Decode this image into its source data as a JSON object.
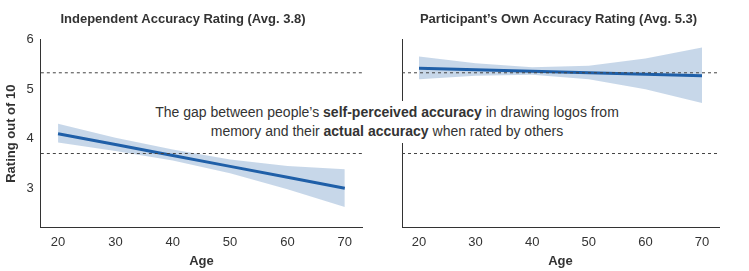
{
  "chart_data": [
    {
      "type": "line",
      "title": "Independent Accuracy Rating (Avg. 3.8)",
      "x_label": "Age",
      "y_label": "Rating out of 10",
      "x": [
        20,
        30,
        40,
        50,
        60,
        70
      ],
      "series": [
        {
          "color": "#1f5fa8",
          "values": [
            4.1,
            3.88,
            3.66,
            3.44,
            3.22,
            3.0
          ],
          "lower": [
            3.92,
            3.75,
            3.56,
            3.3,
            2.98,
            2.62
          ],
          "upper": [
            4.3,
            4.02,
            3.78,
            3.58,
            3.45,
            3.38
          ]
        }
      ],
      "xlim": [
        17,
        73
      ],
      "xticks": [
        20,
        30,
        40,
        50,
        60,
        70
      ],
      "ylim": [
        2.2,
        6
      ],
      "yticks": [
        3,
        4,
        5,
        6
      ],
      "reference_lines": [
        5.33,
        3.7
      ],
      "grid": false
    },
    {
      "type": "line",
      "title": "Participant’s Own Accuracy Rating (Avg. 5.3)",
      "x_label": "Age",
      "x": [
        20,
        30,
        40,
        50,
        60,
        70
      ],
      "series": [
        {
          "color": "#1f5fa8",
          "values": [
            5.42,
            5.39,
            5.36,
            5.33,
            5.3,
            5.27
          ],
          "lower": [
            5.2,
            5.27,
            5.29,
            5.2,
            5.0,
            4.72
          ],
          "upper": [
            5.66,
            5.52,
            5.44,
            5.47,
            5.62,
            5.84
          ]
        }
      ],
      "xlim": [
        17,
        73
      ],
      "xticks": [
        20,
        30,
        40,
        50,
        60,
        70
      ],
      "ylim": [
        2.2,
        6
      ],
      "yticks": [
        3,
        4,
        5,
        6
      ],
      "reference_lines": [
        5.33,
        3.7
      ],
      "grid": false,
      "tick_labels": "x"
    }
  ],
  "annotation": [
    "The gap between people’s ",
    "self-perceived accuracy",
    " in drawing logos from memory and their ",
    "actual accuracy",
    " when rated by others"
  ]
}
